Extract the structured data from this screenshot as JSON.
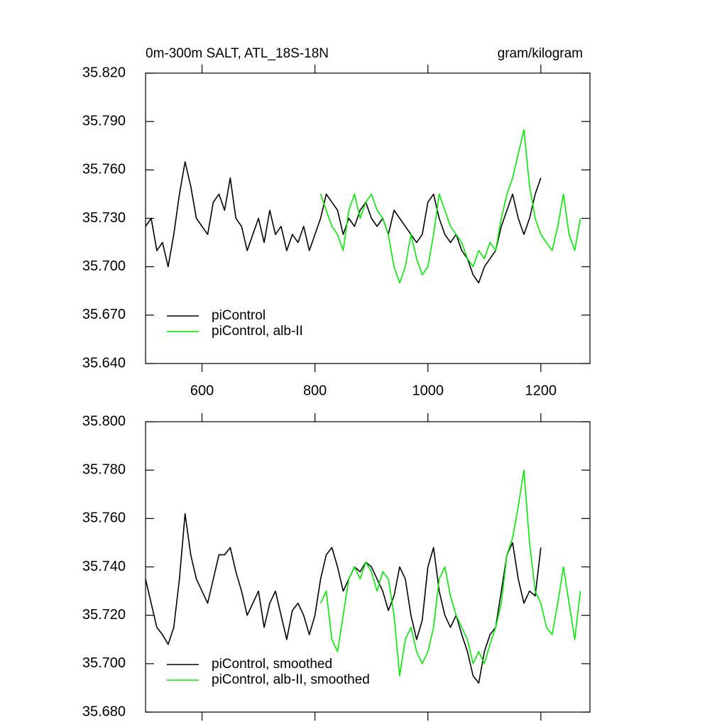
{
  "chart_data": [
    {
      "type": "line",
      "title_left": "0m-300m SALT, ATL_18S-18N",
      "title_right": "gram/kilogram",
      "x": [
        500,
        510,
        520,
        530,
        540,
        550,
        560,
        570,
        580,
        590,
        600,
        610,
        620,
        630,
        640,
        650,
        660,
        670,
        680,
        690,
        700,
        710,
        720,
        730,
        740,
        750,
        760,
        770,
        780,
        790,
        800,
        810,
        820,
        830,
        840,
        850,
        860,
        870,
        880,
        890,
        900,
        910,
        920,
        930,
        940,
        950,
        960,
        970,
        980,
        990,
        1000,
        1010,
        1020,
        1030,
        1040,
        1050,
        1060,
        1070,
        1080,
        1090,
        1100,
        1110,
        1120,
        1130,
        1140,
        1150,
        1160,
        1170,
        1180,
        1190,
        1200,
        1210,
        1220,
        1230,
        1240,
        1250,
        1260,
        1270
      ],
      "series": [
        {
          "name": "piControl",
          "color": "#000000",
          "values": [
            35.725,
            35.73,
            35.71,
            35.715,
            35.7,
            35.72,
            35.745,
            35.765,
            35.75,
            35.73,
            35.725,
            35.72,
            35.74,
            35.745,
            35.735,
            35.755,
            35.73,
            35.725,
            35.71,
            35.72,
            35.73,
            35.715,
            35.735,
            35.72,
            35.725,
            35.71,
            35.72,
            35.715,
            35.725,
            35.71,
            35.72,
            35.73,
            35.745,
            35.74,
            35.735,
            35.72,
            35.73,
            35.725,
            35.735,
            35.74,
            35.73,
            35.725,
            35.73,
            35.72,
            35.735,
            35.73,
            35.725,
            35.72,
            35.715,
            35.72,
            35.74,
            35.745,
            35.73,
            35.72,
            35.715,
            35.72,
            35.71,
            35.705,
            35.695,
            35.69,
            35.7,
            35.705,
            35.71,
            35.725,
            35.735,
            35.745,
            35.73,
            35.72,
            35.73,
            35.745,
            35.755,
            null,
            null,
            null,
            null,
            null,
            null,
            null
          ]
        },
        {
          "name": "piControl, alb-II",
          "color": "#00ee00",
          "values": [
            null,
            null,
            null,
            null,
            null,
            null,
            null,
            null,
            null,
            null,
            null,
            null,
            null,
            null,
            null,
            null,
            null,
            null,
            null,
            null,
            null,
            null,
            null,
            null,
            null,
            null,
            null,
            null,
            null,
            null,
            null,
            35.745,
            35.735,
            35.725,
            35.72,
            35.71,
            35.735,
            35.745,
            35.73,
            35.74,
            35.745,
            35.735,
            35.73,
            35.72,
            35.7,
            35.69,
            35.7,
            35.72,
            35.705,
            35.695,
            35.7,
            35.72,
            35.745,
            35.735,
            35.725,
            35.72,
            35.715,
            35.705,
            35.7,
            35.71,
            35.705,
            35.715,
            35.71,
            35.73,
            35.745,
            35.755,
            35.77,
            35.785,
            35.75,
            35.73,
            35.72,
            35.715,
            35.71,
            35.725,
            35.745,
            35.72,
            35.71,
            35.73
          ]
        }
      ],
      "xlim": [
        500,
        1287
      ],
      "xticks": [
        600,
        800,
        1000,
        1200
      ],
      "show_xtick_labels": true,
      "ylim": [
        35.64,
        35.82
      ],
      "yticks": [
        {
          "value": 35.64,
          "label": "35.640"
        },
        {
          "value": 35.67,
          "label": "35.670"
        },
        {
          "value": 35.7,
          "label": "35.700"
        },
        {
          "value": 35.73,
          "label": "35.730"
        },
        {
          "value": 35.76,
          "label": "35.760"
        },
        {
          "value": 35.79,
          "label": "35.790"
        },
        {
          "value": 35.82,
          "label": "35.820"
        }
      ],
      "legend": "lower left"
    },
    {
      "type": "line",
      "x": [
        500,
        510,
        520,
        530,
        540,
        550,
        560,
        570,
        580,
        590,
        600,
        610,
        620,
        630,
        640,
        650,
        660,
        670,
        680,
        690,
        700,
        710,
        720,
        730,
        740,
        750,
        760,
        770,
        780,
        790,
        800,
        810,
        820,
        830,
        840,
        850,
        860,
        870,
        880,
        890,
        900,
        910,
        920,
        930,
        940,
        950,
        960,
        970,
        980,
        990,
        1000,
        1010,
        1020,
        1030,
        1040,
        1050,
        1060,
        1070,
        1080,
        1090,
        1100,
        1110,
        1120,
        1130,
        1140,
        1150,
        1160,
        1170,
        1180,
        1190,
        1200,
        1210,
        1220,
        1230,
        1240,
        1250,
        1260,
        1270
      ],
      "series": [
        {
          "name": "piControl, smoothed",
          "color": "#000000",
          "values": [
            35.735,
            35.725,
            35.715,
            35.712,
            35.708,
            35.715,
            35.735,
            35.762,
            35.745,
            35.735,
            35.73,
            35.725,
            35.735,
            35.745,
            35.745,
            35.748,
            35.738,
            35.73,
            35.72,
            35.725,
            35.73,
            35.715,
            35.725,
            35.73,
            35.72,
            35.71,
            35.722,
            35.725,
            35.72,
            35.712,
            35.72,
            35.735,
            35.745,
            35.748,
            35.74,
            35.73,
            35.735,
            35.74,
            35.738,
            35.742,
            35.74,
            35.735,
            35.73,
            35.722,
            35.728,
            35.74,
            35.735,
            35.72,
            35.71,
            35.718,
            35.74,
            35.748,
            35.73,
            35.72,
            35.715,
            35.72,
            35.712,
            35.705,
            35.695,
            35.692,
            35.705,
            35.712,
            35.715,
            35.73,
            35.745,
            35.75,
            35.735,
            35.725,
            35.73,
            35.728,
            35.748,
            null,
            null,
            null,
            null,
            null,
            null,
            null
          ]
        },
        {
          "name": "piControl, alb-II, smoothed",
          "color": "#00ee00",
          "values": [
            null,
            null,
            null,
            null,
            null,
            null,
            null,
            null,
            null,
            null,
            null,
            null,
            null,
            null,
            null,
            null,
            null,
            null,
            null,
            null,
            null,
            null,
            null,
            null,
            null,
            null,
            null,
            null,
            null,
            null,
            null,
            35.725,
            35.73,
            35.71,
            35.705,
            35.72,
            35.735,
            35.74,
            35.735,
            35.742,
            35.738,
            35.73,
            35.738,
            35.735,
            35.72,
            35.695,
            35.71,
            35.715,
            35.705,
            35.7,
            35.705,
            35.715,
            35.735,
            35.74,
            35.728,
            35.72,
            35.715,
            35.71,
            35.7,
            35.705,
            35.7,
            35.708,
            35.715,
            35.725,
            35.745,
            35.752,
            35.765,
            35.78,
            35.75,
            35.73,
            35.725,
            35.715,
            35.712,
            35.725,
            35.74,
            35.725,
            35.71,
            35.73
          ]
        }
      ],
      "xlim": [
        500,
        1287
      ],
      "xticks": [
        600,
        800,
        1000,
        1200
      ],
      "show_xtick_labels": false,
      "ylim": [
        35.68,
        35.8
      ],
      "yticks": [
        {
          "value": 35.68,
          "label": "35.680"
        },
        {
          "value": 35.7,
          "label": "35.700"
        },
        {
          "value": 35.72,
          "label": "35.720"
        },
        {
          "value": 35.74,
          "label": "35.740"
        },
        {
          "value": 35.76,
          "label": "35.760"
        },
        {
          "value": 35.78,
          "label": "35.780"
        },
        {
          "value": 35.8,
          "label": "35.800"
        }
      ],
      "legend": "lower left"
    }
  ]
}
